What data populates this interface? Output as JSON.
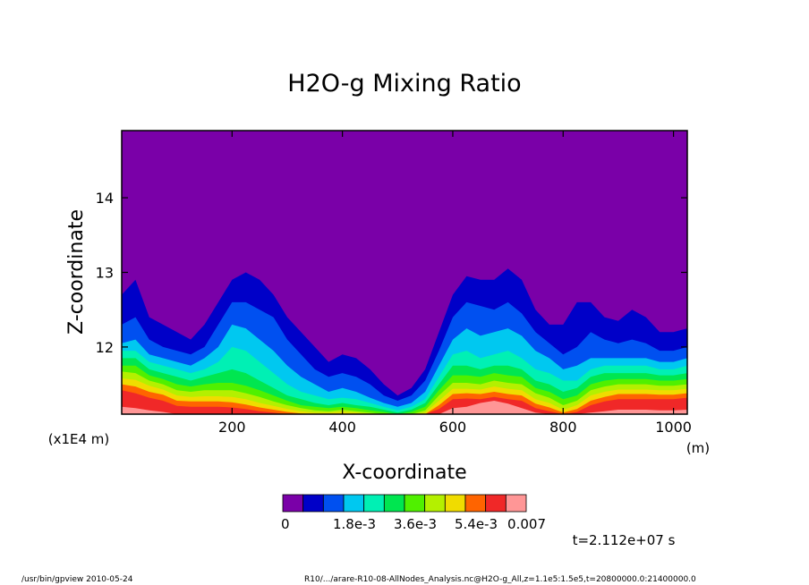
{
  "chart_data": {
    "type": "heatmap",
    "title": "H2O-g Mixing Ratio",
    "xlabel": "X-coordinate",
    "ylabel": "Z-coordinate",
    "x_unit": "(m)",
    "y_unit": "(x1E4 m)",
    "xlim": [
      0,
      1025
    ],
    "ylim": [
      11.1,
      14.9
    ],
    "x_ticks": [
      200,
      400,
      600,
      800,
      1000
    ],
    "x_tick_labels": [
      "200",
      "400",
      "600",
      "800",
      "1000"
    ],
    "y_ticks": [
      12,
      13,
      14
    ],
    "y_tick_labels": [
      "12",
      "13",
      "14"
    ],
    "background_level_color": "#7a00a8",
    "levels": [
      0,
      0.000636,
      0.001273,
      0.001909,
      0.002545,
      0.003182,
      0.003818,
      0.004455,
      0.005091,
      0.005727,
      0.006364,
      0.007
    ],
    "level_colors": [
      "#7a00a8",
      "#0000c8",
      "#0050f0",
      "#00c8f0",
      "#00f0b4",
      "#00e650",
      "#50f000",
      "#b4f000",
      "#f0dc00",
      "#ff6400",
      "#f02828",
      "#ff9696"
    ],
    "colorbar_labels": [
      "0",
      "1.8e-3",
      "3.6e-3",
      "5.4e-3",
      "0.007"
    ],
    "contour_tops": {
      "x": [
        0,
        25,
        50,
        75,
        100,
        125,
        150,
        175,
        200,
        225,
        250,
        275,
        300,
        325,
        350,
        375,
        400,
        425,
        450,
        475,
        500,
        525,
        550,
        575,
        600,
        625,
        650,
        675,
        700,
        725,
        750,
        775,
        800,
        825,
        850,
        875,
        900,
        925,
        950,
        975,
        1000,
        1025
      ],
      "level_1": [
        12.7,
        12.9,
        12.4,
        12.3,
        12.2,
        12.1,
        12.3,
        12.6,
        12.9,
        13.0,
        12.9,
        12.7,
        12.4,
        12.2,
        12.0,
        11.8,
        11.9,
        11.85,
        11.7,
        11.5,
        11.35,
        11.45,
        11.7,
        12.2,
        12.7,
        12.95,
        12.9,
        12.9,
        13.05,
        12.9,
        12.5,
        12.3,
        12.3,
        12.6,
        12.6,
        12.4,
        12.35,
        12.5,
        12.4,
        12.2,
        12.2,
        12.25
      ],
      "level_2": [
        12.3,
        12.4,
        12.1,
        12.0,
        11.95,
        11.9,
        12.0,
        12.3,
        12.6,
        12.6,
        12.5,
        12.4,
        12.1,
        11.9,
        11.7,
        11.6,
        11.65,
        11.6,
        11.5,
        11.35,
        11.28,
        11.35,
        11.55,
        11.95,
        12.4,
        12.6,
        12.55,
        12.5,
        12.6,
        12.45,
        12.2,
        12.05,
        11.9,
        12.0,
        12.2,
        12.1,
        12.05,
        12.1,
        12.05,
        11.95,
        11.95,
        12.0
      ],
      "level_3": [
        12.05,
        12.1,
        11.9,
        11.85,
        11.8,
        11.75,
        11.85,
        12.0,
        12.3,
        12.25,
        12.1,
        11.95,
        11.75,
        11.6,
        11.5,
        11.4,
        11.45,
        11.4,
        11.32,
        11.25,
        11.2,
        11.25,
        11.4,
        11.75,
        12.1,
        12.25,
        12.15,
        12.2,
        12.25,
        12.15,
        11.95,
        11.85,
        11.7,
        11.75,
        11.85,
        11.85,
        11.85,
        11.85,
        11.85,
        11.8,
        11.8,
        11.85
      ],
      "level_4": [
        11.95,
        11.95,
        11.8,
        11.75,
        11.7,
        11.65,
        11.7,
        11.8,
        12.0,
        11.95,
        11.8,
        11.65,
        11.5,
        11.4,
        11.35,
        11.3,
        11.32,
        11.3,
        11.25,
        11.2,
        11.15,
        11.2,
        11.3,
        11.6,
        11.9,
        11.95,
        11.85,
        11.9,
        11.95,
        11.85,
        11.7,
        11.65,
        11.55,
        11.55,
        11.7,
        11.75,
        11.75,
        11.75,
        11.75,
        11.7,
        11.7,
        11.75
      ],
      "level_5": [
        11.85,
        11.85,
        11.7,
        11.65,
        11.6,
        11.55,
        11.6,
        11.65,
        11.7,
        11.65,
        11.55,
        11.45,
        11.35,
        11.3,
        11.25,
        11.22,
        11.25,
        11.22,
        11.2,
        11.16,
        11.12,
        11.16,
        11.25,
        11.5,
        11.75,
        11.75,
        11.7,
        11.75,
        11.75,
        11.7,
        11.55,
        11.5,
        11.4,
        11.45,
        11.6,
        11.65,
        11.65,
        11.65,
        11.65,
        11.62,
        11.62,
        11.65
      ],
      "level_6": [
        11.75,
        11.75,
        11.62,
        11.57,
        11.5,
        11.47,
        11.5,
        11.52,
        11.52,
        11.48,
        11.42,
        11.35,
        11.28,
        11.22,
        11.2,
        11.18,
        11.2,
        11.18,
        11.15,
        11.13,
        11.1,
        11.13,
        11.2,
        11.42,
        11.62,
        11.62,
        11.6,
        11.65,
        11.62,
        11.6,
        11.45,
        11.4,
        11.3,
        11.35,
        11.5,
        11.55,
        11.57,
        11.57,
        11.57,
        11.55,
        11.55,
        11.57
      ],
      "level_7": [
        11.67,
        11.65,
        11.55,
        11.5,
        11.42,
        11.4,
        11.42,
        11.42,
        11.42,
        11.38,
        11.33,
        11.27,
        11.22,
        11.18,
        11.15,
        11.14,
        11.16,
        11.14,
        11.12,
        11.1,
        11.1,
        11.1,
        11.15,
        11.35,
        11.52,
        11.52,
        11.5,
        11.55,
        11.52,
        11.5,
        11.38,
        11.32,
        11.22,
        11.28,
        11.42,
        11.47,
        11.5,
        11.5,
        11.5,
        11.48,
        11.48,
        11.5
      ],
      "level_8": [
        11.58,
        11.56,
        11.48,
        11.43,
        11.35,
        11.33,
        11.34,
        11.34,
        11.33,
        11.3,
        11.25,
        11.21,
        11.17,
        11.14,
        11.12,
        11.12,
        11.13,
        11.12,
        11.1,
        11.1,
        11.1,
        11.1,
        11.12,
        11.28,
        11.44,
        11.44,
        11.43,
        11.47,
        11.44,
        11.42,
        11.3,
        11.25,
        11.16,
        11.22,
        11.35,
        11.4,
        11.43,
        11.43,
        11.43,
        11.42,
        11.42,
        11.44
      ],
      "level_9": [
        11.5,
        11.47,
        11.4,
        11.36,
        11.28,
        11.27,
        11.27,
        11.27,
        11.26,
        11.23,
        11.19,
        11.16,
        11.13,
        11.11,
        11.1,
        11.1,
        11.1,
        11.1,
        11.1,
        11.1,
        11.1,
        11.1,
        11.1,
        11.22,
        11.37,
        11.38,
        11.37,
        11.4,
        11.37,
        11.35,
        11.24,
        11.19,
        11.12,
        11.17,
        11.28,
        11.33,
        11.37,
        11.37,
        11.37,
        11.36,
        11.36,
        11.38
      ],
      "level_10": [
        11.42,
        11.38,
        11.32,
        11.28,
        11.21,
        11.2,
        11.2,
        11.2,
        11.19,
        11.17,
        11.14,
        11.12,
        11.1,
        11.1,
        11.1,
        11.1,
        11.1,
        11.1,
        11.1,
        11.1,
        11.1,
        11.1,
        11.1,
        11.17,
        11.3,
        11.31,
        11.3,
        11.33,
        11.3,
        11.28,
        11.18,
        11.14,
        11.1,
        11.13,
        11.22,
        11.27,
        11.3,
        11.3,
        11.3,
        11.3,
        11.3,
        11.32
      ],
      "level_11": [
        11.2,
        11.18,
        11.15,
        11.13,
        11.1,
        11.1,
        11.1,
        11.1,
        11.1,
        11.1,
        11.1,
        11.1,
        11.1,
        11.1,
        11.1,
        11.1,
        11.1,
        11.1,
        11.1,
        11.1,
        11.1,
        11.1,
        11.1,
        11.1,
        11.18,
        11.2,
        11.25,
        11.28,
        11.24,
        11.18,
        11.12,
        11.1,
        11.1,
        11.1,
        11.12,
        11.14,
        11.16,
        11.16,
        11.16,
        11.15,
        11.15,
        11.16
      ]
    },
    "time_label": "t=2.112e+07 s",
    "legend": "bottom"
  },
  "footer": {
    "left": "/usr/bin/gpview   2010-05-24",
    "right": "R10/.../arare-R10-08-AllNodes_Analysis.nc@H2O-g_All,z=1.1e5:1.5e5,t=20800000.0:21400000.0"
  }
}
